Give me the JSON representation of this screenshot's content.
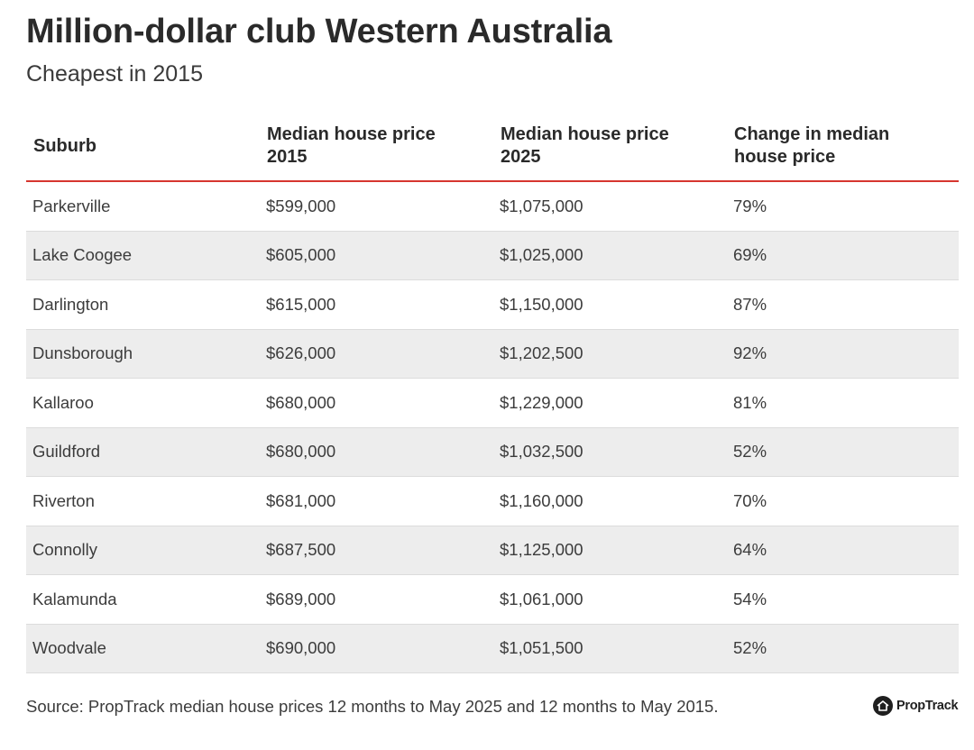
{
  "title": "Million-dollar club Western Australia",
  "subtitle": "Cheapest in 2015",
  "source": "Source: PropTrack median house prices 12 months to May 2025 and 12 months to May 2015.",
  "logo": {
    "text": "PropTrack",
    "icon": "house-icon"
  },
  "colors": {
    "header_rule": "#d6362f",
    "stripe": "#ededed",
    "text": "#2a2a2a"
  },
  "chart_data": {
    "type": "table",
    "title": "Million-dollar club Western Australia",
    "subtitle": "Cheapest in 2015",
    "columns": [
      "Suburb",
      "Median house price 2015",
      "Median house price 2025",
      "Change in median house price"
    ],
    "header_lines": [
      [
        "Suburb",
        ""
      ],
      [
        "Median house price",
        "2015"
      ],
      [
        "Median house price",
        "2025"
      ],
      [
        "Change in median",
        "house price"
      ]
    ],
    "rows": [
      [
        "Parkerville",
        "$599,000",
        "$1,075,000",
        "79%"
      ],
      [
        "Lake Coogee",
        "$605,000",
        "$1,025,000",
        "69%"
      ],
      [
        "Darlington",
        "$615,000",
        "$1,150,000",
        "87%"
      ],
      [
        "Dunsborough",
        "$626,000",
        "$1,202,500",
        "92%"
      ],
      [
        "Kallaroo",
        "$680,000",
        "$1,229,000",
        "81%"
      ],
      [
        "Guildford",
        "$680,000",
        "$1,032,500",
        "52%"
      ],
      [
        "Riverton",
        "$681,000",
        "$1,160,000",
        "70%"
      ],
      [
        "Connolly",
        "$687,500",
        "$1,125,000",
        "64%"
      ],
      [
        "Kalamunda",
        "$689,000",
        "$1,061,000",
        "54%"
      ],
      [
        "Woodvale",
        "$690,000",
        "$1,051,500",
        "52%"
      ]
    ]
  }
}
